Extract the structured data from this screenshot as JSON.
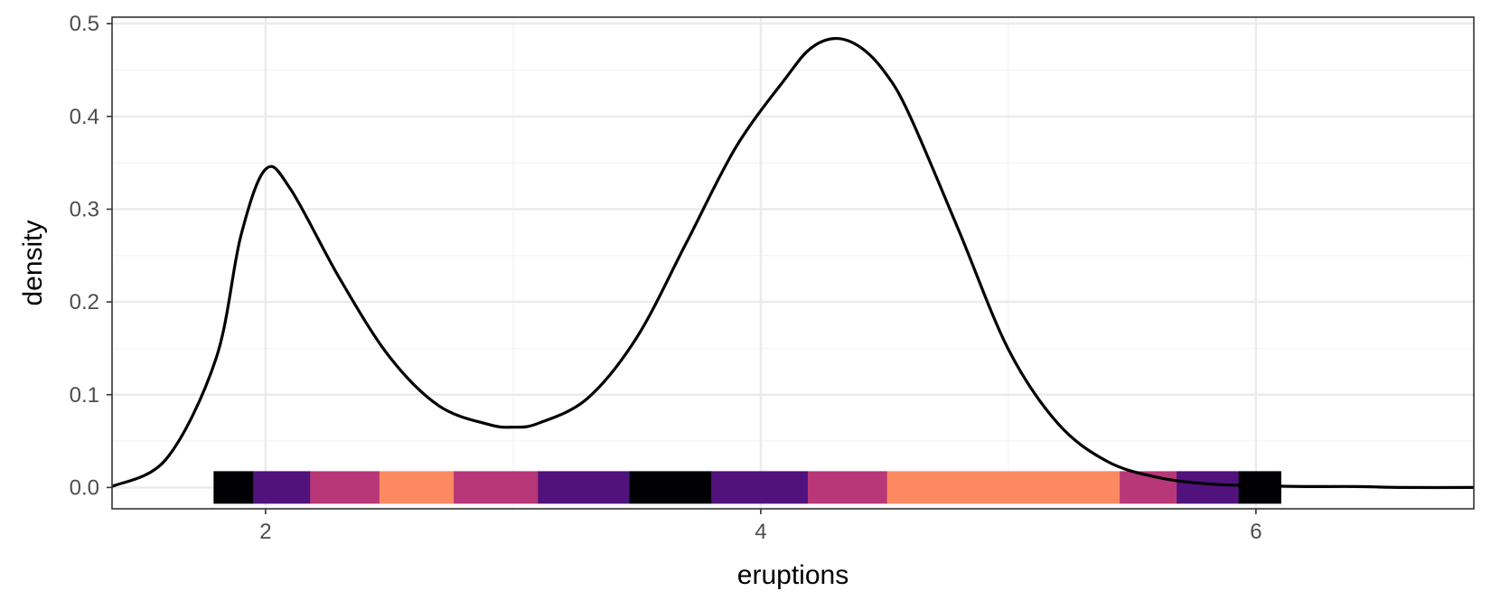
{
  "chart_data": {
    "type": "area",
    "xlabel": "eruptions",
    "ylabel": "density",
    "xlim": [
      1.38,
      6.88
    ],
    "ylim": [
      -0.023,
      0.507
    ],
    "x_ticks": [
      2,
      4,
      6
    ],
    "x_tick_labels": [
      "2",
      "4",
      "6"
    ],
    "y_ticks": [
      0.0,
      0.1,
      0.2,
      0.3,
      0.4,
      0.5
    ],
    "y_tick_labels": [
      "0.0",
      "0.1",
      "0.2",
      "0.3",
      "0.4",
      "0.5"
    ],
    "grid": true,
    "legend": "none",
    "series": [
      {
        "x": [
          1.38,
          1.6,
          1.8,
          1.9,
          2.0,
          2.1,
          2.3,
          2.5,
          2.7,
          2.9,
          3.0,
          3.1,
          3.3,
          3.5,
          3.7,
          3.9,
          4.1,
          4.2,
          4.3,
          4.4,
          4.5,
          4.6,
          4.8,
          5.0,
          5.2,
          5.4,
          5.6,
          5.8,
          6.0,
          6.2,
          6.4,
          6.6,
          6.88
        ],
        "y": [
          0.001,
          0.031,
          0.139,
          0.271,
          0.343,
          0.322,
          0.225,
          0.141,
          0.088,
          0.068,
          0.065,
          0.069,
          0.096,
          0.162,
          0.264,
          0.367,
          0.441,
          0.473,
          0.484,
          0.475,
          0.448,
          0.402,
          0.277,
          0.149,
          0.069,
          0.028,
          0.011,
          0.004,
          0.002,
          0.001,
          0.001,
          0.0,
          0.0
        ]
      }
    ],
    "color_band": {
      "y": 0.0,
      "segments": [
        {
          "x0": 1.79,
          "x1": 1.95,
          "color": "#000004"
        },
        {
          "x0": 1.95,
          "x1": 2.18,
          "color": "#51127c"
        },
        {
          "x0": 2.18,
          "x1": 2.46,
          "color": "#b73779"
        },
        {
          "x0": 2.46,
          "x1": 2.76,
          "color": "#fc8961"
        },
        {
          "x0": 2.76,
          "x1": 3.1,
          "color": "#b73779"
        },
        {
          "x0": 3.1,
          "x1": 3.47,
          "color": "#51127c"
        },
        {
          "x0": 3.47,
          "x1": 3.8,
          "color": "#000004"
        },
        {
          "x0": 3.8,
          "x1": 4.19,
          "color": "#51127c"
        },
        {
          "x0": 4.19,
          "x1": 4.51,
          "color": "#b73779"
        },
        {
          "x0": 4.51,
          "x1": 5.45,
          "color": "#fc8961"
        },
        {
          "x0": 5.45,
          "x1": 5.68,
          "color": "#b73779"
        },
        {
          "x0": 5.68,
          "x1": 5.93,
          "color": "#51127c"
        },
        {
          "x0": 5.93,
          "x1": 6.1,
          "color": "#000004"
        }
      ]
    }
  }
}
